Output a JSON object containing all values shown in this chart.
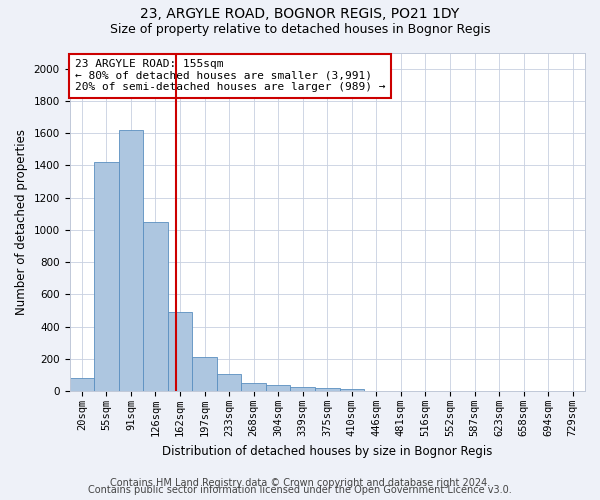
{
  "title_line1": "23, ARGYLE ROAD, BOGNOR REGIS, PO21 1DY",
  "title_line2": "Size of property relative to detached houses in Bognor Regis",
  "xlabel": "Distribution of detached houses by size in Bognor Regis",
  "ylabel": "Number of detached properties",
  "categories": [
    "20sqm",
    "55sqm",
    "91sqm",
    "126sqm",
    "162sqm",
    "197sqm",
    "233sqm",
    "268sqm",
    "304sqm",
    "339sqm",
    "375sqm",
    "410sqm",
    "446sqm",
    "481sqm",
    "516sqm",
    "552sqm",
    "587sqm",
    "623sqm",
    "658sqm",
    "694sqm",
    "729sqm"
  ],
  "values": [
    80,
    1420,
    1620,
    1050,
    490,
    210,
    105,
    50,
    35,
    25,
    20,
    10,
    0,
    0,
    0,
    0,
    0,
    0,
    0,
    0,
    0
  ],
  "bar_color": "#adc6e0",
  "bar_edge_color": "#5a8fc0",
  "annotation_text": "23 ARGYLE ROAD: 155sqm\n← 80% of detached houses are smaller (3,991)\n20% of semi-detached houses are larger (989) →",
  "vline_pos": 3.82,
  "vline_color": "#cc0000",
  "box_color": "#cc0000",
  "ylim": [
    0,
    2100
  ],
  "yticks": [
    0,
    200,
    400,
    600,
    800,
    1000,
    1200,
    1400,
    1600,
    1800,
    2000
  ],
  "footer_line1": "Contains HM Land Registry data © Crown copyright and database right 2024.",
  "footer_line2": "Contains public sector information licensed under the Open Government Licence v3.0.",
  "bg_color": "#eef1f8",
  "plot_bg_color": "#ffffff",
  "title_fontsize": 10,
  "subtitle_fontsize": 9,
  "tick_fontsize": 7.5,
  "label_fontsize": 8.5,
  "footer_fontsize": 7,
  "annotation_fontsize": 8
}
